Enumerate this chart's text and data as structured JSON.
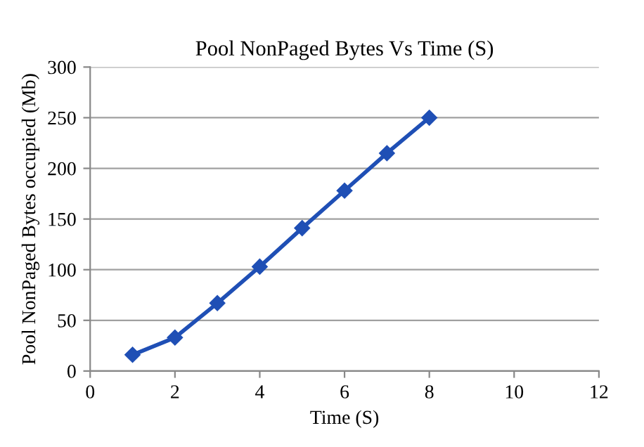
{
  "chart_data": {
    "type": "line",
    "title": "Pool NonPaged Bytes Vs Time (S)",
    "xlabel": "Time (S)",
    "ylabel": "Pool NonPaged Bytes occupied (Mb)",
    "x": [
      1,
      2,
      3,
      4,
      5,
      6,
      7,
      8
    ],
    "series": [
      {
        "color": "#1f4fb5",
        "values": [
          16,
          33,
          67,
          103,
          141,
          178,
          215,
          250
        ]
      }
    ],
    "xlim": [
      0,
      12
    ],
    "xticks": [
      0,
      2,
      4,
      6,
      8,
      10,
      12
    ],
    "ylim": [
      0,
      300
    ],
    "yticks": [
      0,
      50,
      100,
      150,
      200,
      250,
      300
    ],
    "grid": "y",
    "marker": "diamond",
    "line_style": "solid",
    "legend": false
  }
}
